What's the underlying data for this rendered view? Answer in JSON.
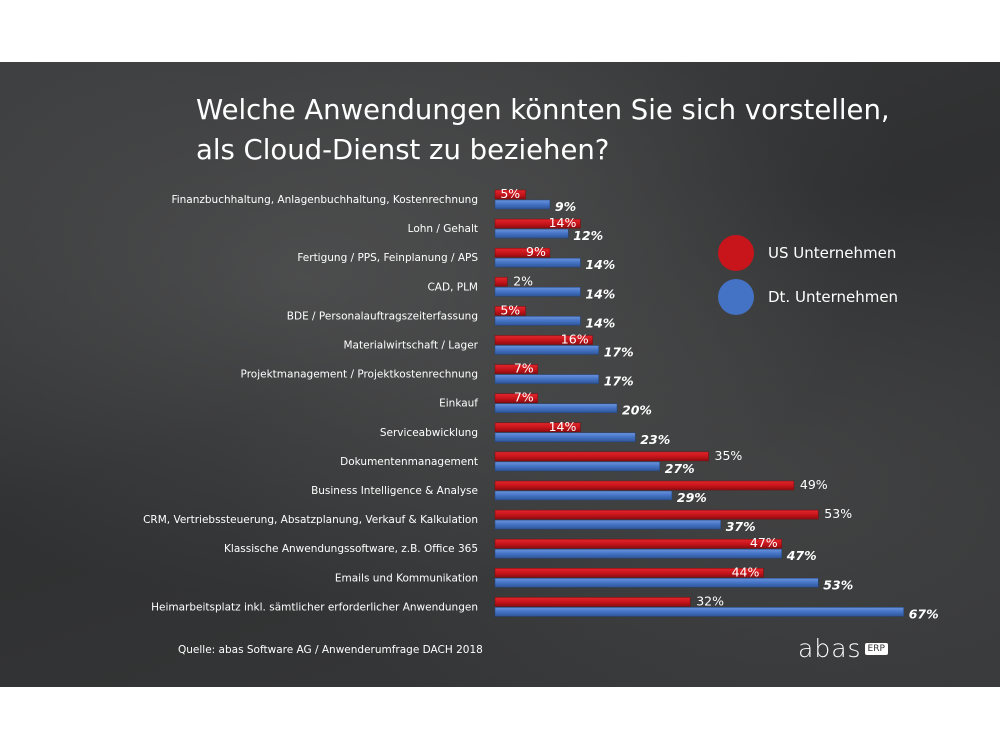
{
  "chart_data": {
    "type": "bar",
    "orientation": "horizontal",
    "title": "Welche Anwendungen könnten Sie sich vorstellen, als Cloud-Dienst zu beziehen?",
    "title_lines": [
      "Welche Anwendungen könnten Sie sich vorstellen,",
      "als Cloud-Dienst zu beziehen?"
    ],
    "categories": [
      "Finanzbuchhaltung, Anlagenbuchhaltung, Kostenrechnung",
      "Lohn / Gehalt",
      "Fertigung / PPS, Feinplanung / APS",
      "CAD, PLM",
      "BDE / Personalauftragszeiterfassung",
      "Materialwirtschaft / Lager",
      "Projektmanagement / Projektkostenrechnung",
      "Einkauf",
      "Serviceabwicklung",
      "Dokumentenmanagement",
      "Business Intelligence & Analyse",
      "CRM, Vertriebssteuerung, Absatzplanung, Verkauf & Kalkulation",
      "Klassische Anwendungssoftware, z.B. Office 365",
      "Emails und Kommunikation",
      "Heimarbeitsplatz inkl. sämtlicher erforderlicher Anwendungen"
    ],
    "series": [
      {
        "name": "US Unternehmen",
        "color": "#c8151b",
        "values": [
          5,
          14,
          9,
          2,
          5,
          16,
          7,
          7,
          14,
          35,
          49,
          53,
          47,
          44,
          32
        ],
        "labels": [
          "5%",
          "14%",
          "9%",
          "2%",
          "5%",
          "16%",
          "7%",
          "7%",
          "14%",
          "35%",
          "49%",
          "53%",
          "47%",
          "44%",
          "32%"
        ]
      },
      {
        "name": "Dt. Unternehmen",
        "color": "#4472c4",
        "values": [
          9,
          12,
          14,
          14,
          14,
          17,
          17,
          20,
          23,
          27,
          29,
          37,
          47,
          53,
          67
        ],
        "labels": [
          "9%",
          "12%",
          "14%",
          "14%",
          "14%",
          "17%",
          "17%",
          "20%",
          "23%",
          "27%",
          "29%",
          "37%",
          "47%",
          "53%",
          "67%"
        ]
      }
    ],
    "unit": "%",
    "xlim": [
      0,
      100
    ],
    "grid": false,
    "legend_position": "right"
  },
  "source": "Quelle: abas Software AG / Anwenderumfrage DACH 2018",
  "logo": {
    "word": "abas",
    "tag": "ERP"
  },
  "colors": {
    "background": "#343536",
    "us": "#c8151b",
    "de": "#4472c4",
    "text": "#ffffff"
  }
}
